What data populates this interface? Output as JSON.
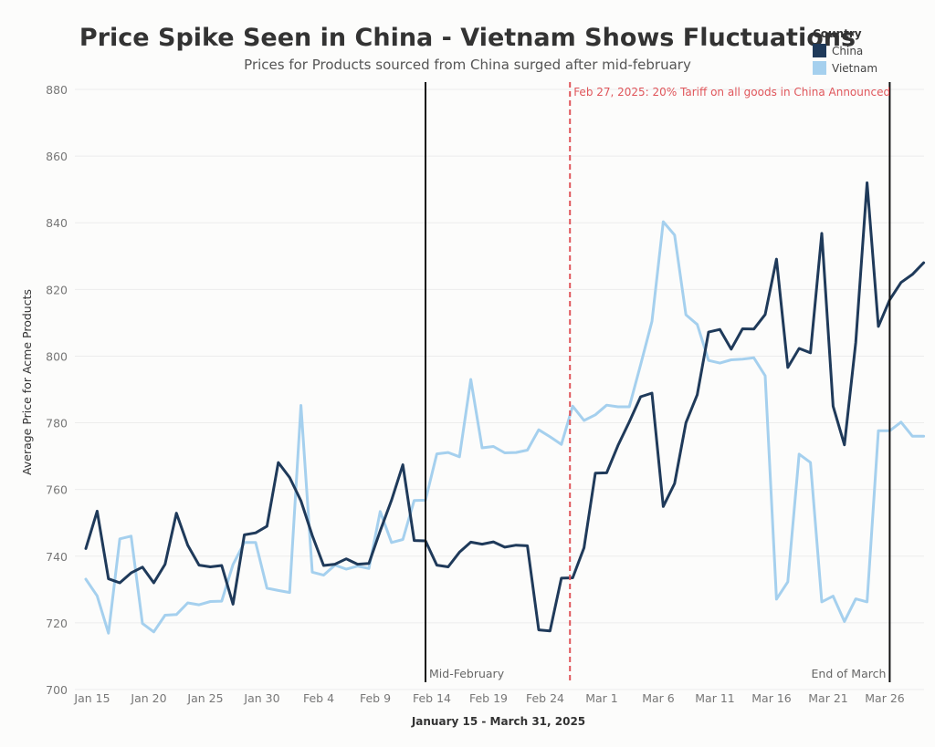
{
  "chart_data": {
    "type": "line",
    "title": "Price Spike Seen in China - Vietnam Shows Fluctuations",
    "subtitle": "Prices for Products sourced from China surged after mid-february",
    "xlabel": "January 15 - March 31, 2025",
    "ylabel": "Average Price for Acme Products",
    "ylim": [
      700,
      880
    ],
    "yticks": [
      700,
      720,
      740,
      760,
      780,
      800,
      820,
      840,
      860,
      880
    ],
    "x_start": "2025-01-15",
    "x_end": "2025-03-31",
    "xticks": [
      {
        "date": "2025-01-15",
        "label": "Jan 15"
      },
      {
        "date": "2025-01-20",
        "label": "Jan 20"
      },
      {
        "date": "2025-01-25",
        "label": "Jan 25"
      },
      {
        "date": "2025-01-30",
        "label": "Jan 30"
      },
      {
        "date": "2025-02-04",
        "label": "Feb 4"
      },
      {
        "date": "2025-02-09",
        "label": "Feb 9"
      },
      {
        "date": "2025-02-14",
        "label": "Feb 14"
      },
      {
        "date": "2025-02-19",
        "label": "Feb 19"
      },
      {
        "date": "2025-02-24",
        "label": "Feb 24"
      },
      {
        "date": "2025-03-01",
        "label": "Mar 1"
      },
      {
        "date": "2025-03-06",
        "label": "Mar 6"
      },
      {
        "date": "2025-03-11",
        "label": "Mar 11"
      },
      {
        "date": "2025-03-16",
        "label": "Mar 16"
      },
      {
        "date": "2025-03-21",
        "label": "Mar 21"
      },
      {
        "date": "2025-03-26",
        "label": "Mar 26"
      }
    ],
    "grid": true,
    "legend": {
      "title": "Country",
      "position": "top-right"
    },
    "series": [
      {
        "name": "China",
        "color": "#1f3a5a",
        "values": [
          742.3,
          753.5,
          733.2,
          732.0,
          735.0,
          736.7,
          732.0,
          737.6,
          752.9,
          743.3,
          737.3,
          736.8,
          737.2,
          725.6,
          746.4,
          747.0,
          749.0,
          768.1,
          763.6,
          756.6,
          746.2,
          737.2,
          737.6,
          739.2,
          737.6,
          737.8,
          747.6,
          756.8,
          767.4,
          744.7,
          744.6,
          737.3,
          736.8,
          741.2,
          744.2,
          743.6,
          744.3,
          742.7,
          743.3,
          743.1,
          717.9,
          717.6,
          733.4,
          733.5,
          742.5,
          764.9,
          765.0,
          773.2,
          780.3,
          787.8,
          788.9,
          754.9,
          761.8,
          780.0,
          788.4,
          807.2,
          808.0,
          802.1,
          808.2,
          808.1,
          812.5,
          829.1,
          796.6,
          802.3,
          801.0,
          836.8,
          785.0,
          773.4,
          804.1,
          852.0,
          808.9,
          816.9,
          822.1,
          824.5,
          828.0
        ]
      },
      {
        "name": "Vietnam",
        "color": "#a5d0ee",
        "values": [
          733.1,
          728.1,
          716.9,
          745.2,
          746.0,
          719.8,
          717.3,
          722.3,
          722.5,
          726.0,
          725.4,
          726.4,
          726.5,
          737.5,
          744.1,
          744.1,
          730.4,
          729.7,
          729.1,
          785.2,
          735.2,
          734.3,
          737.3,
          736.1,
          737.0,
          736.3,
          753.4,
          744.1,
          745.0,
          756.7,
          756.8,
          770.7,
          771.1,
          769.8,
          793.0,
          772.5,
          772.9,
          771.0,
          771.1,
          771.8,
          777.9,
          775.8,
          773.5,
          785.0,
          780.7,
          782.4,
          785.3,
          784.8,
          784.8,
          797.4,
          810.4,
          840.3,
          836.3,
          812.4,
          809.5,
          798.7,
          797.9,
          798.9,
          799.1,
          799.5,
          794.1,
          727.1,
          732.3,
          770.6,
          768.1,
          726.3,
          728.0,
          720.4,
          727.2,
          726.3,
          777.6,
          777.6,
          780.2,
          776.0,
          776.0
        ]
      }
    ],
    "reference_lines": [
      {
        "date": "2025-02-14",
        "label": "Mid-February",
        "style": "solid",
        "color": "#111111"
      },
      {
        "date": "2025-03-27",
        "label": "End of March",
        "style": "solid",
        "color": "#111111"
      },
      {
        "date": "2025-02-27",
        "label": "Feb 27, 2025: 20% Tariff on all goods in China Announced",
        "style": "dashed",
        "color": "#e0565b"
      }
    ]
  }
}
